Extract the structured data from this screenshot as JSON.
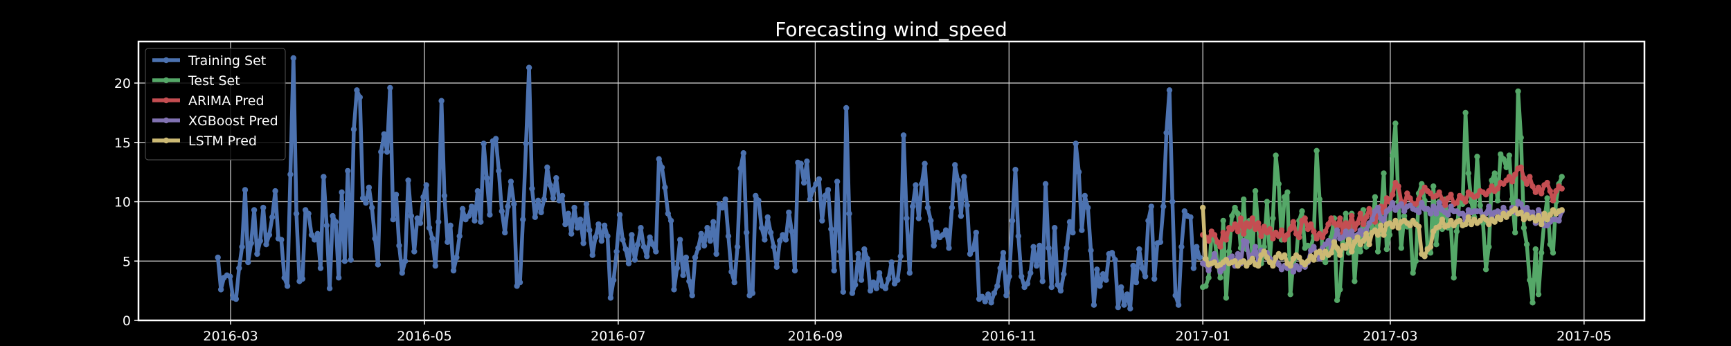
{
  "chart_data": {
    "type": "line",
    "title": "Forecasting wind_speed",
    "xlabel": "",
    "ylabel": "",
    "x_range": [
      "2016-02-01",
      "2017-05-20"
    ],
    "ylim": [
      0,
      23.5
    ],
    "x_ticks": [
      "2016-03",
      "2016-05",
      "2016-07",
      "2016-09",
      "2016-11",
      "2017-01",
      "2017-03",
      "2017-05"
    ],
    "x_tick_dates": [
      "2016-03-01",
      "2016-05-01",
      "2016-07-01",
      "2016-09-01",
      "2016-11-01",
      "2017-01-01",
      "2017-03-01",
      "2017-05-01"
    ],
    "y_ticks": [
      0,
      5,
      10,
      15,
      20
    ],
    "grid": true,
    "legend_position": "top-left",
    "colors": {
      "background": "#000000",
      "frame": "#ffffff",
      "grid": "#d9d9d9",
      "text": "#ffffff"
    },
    "series": [
      {
        "name": "Training Set",
        "color": "#4c72b0",
        "start_date": "2016-02-26",
        "end_date": "2016-12-31",
        "values": [
          5.3,
          2.6,
          3.6,
          3.8,
          3.7,
          1.9,
          1.8,
          4.4,
          6.2,
          11.0,
          4.9,
          6.5,
          9.3,
          5.6,
          6.7,
          9.5,
          6.4,
          7.2,
          8.7,
          10.9,
          6.9,
          6.8,
          3.6,
          2.9,
          12.3,
          22.1,
          9.0,
          3.3,
          3.5,
          9.3,
          9.0,
          7.2,
          6.8,
          7.3,
          4.4,
          12.1,
          8.0,
          2.7,
          8.8,
          8.3,
          3.6,
          10.8,
          5.0,
          12.6,
          5.1,
          16.1,
          19.4,
          18.8,
          10.3,
          9.9,
          11.2,
          9.5,
          6.9,
          4.7,
          14.2,
          15.7,
          14.2,
          19.6,
          8.5,
          10.6,
          6.3,
          4.0,
          5.0,
          11.8,
          8.8,
          5.8,
          8.6,
          8.2,
          10.4,
          11.4,
          7.8,
          6.9,
          4.6,
          8.3,
          18.5,
          10.5,
          6.6,
          8.0,
          4.2,
          5.3,
          7.1,
          9.4,
          8.5,
          8.8,
          9.6,
          8.4,
          10.9,
          8.3,
          14.9,
          12.0,
          8.9,
          15.1,
          15.3,
          12.6,
          9.2,
          7.4,
          9.6,
          11.7,
          9.8,
          2.9,
          3.2,
          8.5,
          14.9,
          21.3,
          11.1,
          8.7,
          10.1,
          9.1,
          10.2,
          12.9,
          11.4,
          10.3,
          12.0,
          10.1,
          10.5,
          8.1,
          9.0,
          7.3,
          9.5,
          7.8,
          8.5,
          6.5,
          9.8,
          7.6,
          5.5,
          7.0,
          8.1,
          6.7,
          8.0,
          7.1,
          1.9,
          3.4,
          5.8,
          8.9,
          6.8,
          6.0,
          4.8,
          7.2,
          5.1,
          6.4,
          7.8,
          6.2,
          5.4,
          7.0,
          6.4,
          5.8,
          13.6,
          12.9,
          11.2,
          9.0,
          8.4,
          2.6,
          4.4,
          6.8,
          3.8,
          5.3,
          3.3,
          2.1,
          5.3,
          6.1,
          7.3,
          6.3,
          7.8,
          6.7,
          8.3,
          5.6,
          9.8,
          9.5,
          10.2,
          7.1,
          4.1,
          3.2,
          6.2,
          12.8,
          14.1,
          7.4,
          2.1,
          2.3,
          10.5,
          10.1,
          7.8,
          6.8,
          8.7,
          7.4,
          6.2,
          4.5,
          6.7,
          7.2,
          6.8,
          9.1,
          7.5,
          4.2,
          13.3,
          13.2,
          11.6,
          13.4,
          10.2,
          11.0,
          11.5,
          11.9,
          8.4,
          10.5,
          11.0,
          7.7,
          4.2,
          11.7,
          5.8,
          2.4,
          17.9,
          9.0,
          2.3,
          3.0,
          5.6,
          3.4,
          6.0,
          5.2,
          2.5,
          3.2,
          2.7,
          4.0,
          2.9,
          2.7,
          3.5,
          4.9,
          3.1,
          3.4,
          5.4,
          15.6,
          8.6,
          4.0,
          9.6,
          11.4,
          8.6,
          11.5,
          13.2,
          9.5,
          8.4,
          6.3,
          7.4,
          7.0,
          7.2,
          7.6,
          6.1,
          9.5,
          13.1,
          11.8,
          8.8,
          12.1,
          9.7,
          5.6,
          6.0,
          7.4,
          1.8,
          2.0,
          1.6,
          2.2,
          1.5,
          2.3,
          2.9,
          4.4,
          5.7,
          2.1,
          3.7,
          8.4,
          12.7,
          7.1,
          3.7,
          2.8,
          3.1,
          4.0,
          6.2,
          4.6,
          6.3,
          3.3,
          11.5,
          6.1,
          2.8,
          7.8,
          3.0,
          2.5,
          3.9,
          6.1,
          8.3,
          7.4,
          14.9,
          12.5,
          7.6,
          10.5,
          9.5,
          5.9,
          1.3,
          4.3,
          2.9,
          3.9,
          3.4,
          5.6,
          5.7,
          5.1,
          1.1,
          2.8,
          1.3,
          2.2,
          1.0,
          4.6,
          3.2,
          6.0,
          4.4,
          3.7,
          8.4,
          9.6,
          3.5,
          6.5,
          6.6,
          9.6,
          15.8,
          19.4,
          10.0,
          2.1,
          1.3,
          6.2,
          9.2,
          8.8,
          8.7,
          4.4,
          6.2,
          5.3
        ]
      },
      {
        "name": "Test Set",
        "color": "#55a868",
        "start_date": "2017-01-01",
        "end_date": "2017-04-24",
        "values": [
          2.8,
          2.9,
          3.6,
          7.2,
          7.0,
          4.9,
          3.6,
          8.4,
          1.9,
          5.8,
          8.8,
          9.5,
          9.0,
          6.1,
          10.2,
          6.0,
          8.4,
          5.4,
          10.9,
          7.7,
          4.8,
          6.2,
          10.0,
          5.2,
          8.6,
          13.9,
          11.5,
          6.8,
          10.4,
          10.8,
          2.2,
          4.9,
          5.3,
          8.4,
          9.2,
          6.1,
          6.3,
          6.2,
          7.1,
          14.3,
          10.2,
          5.8,
          4.9,
          6.2,
          7.0,
          8.6,
          1.7,
          2.6,
          6.5,
          9.0,
          5.7,
          9.0,
          3.3,
          6.8,
          5.8,
          9.3,
          6.2,
          6.9,
          7.8,
          10.4,
          5.8,
          8.6,
          12.4,
          6.0,
          7.2,
          13.9,
          16.6,
          10.0,
          6.1,
          8.8,
          7.9,
          8.2,
          4.0,
          5.0,
          10.7,
          11.5,
          10.1,
          6.1,
          5.7,
          11.3,
          6.4,
          10.0,
          7.7,
          10.2,
          7.8,
          7.9,
          3.6,
          7.5,
          10.3,
          9.8,
          17.5,
          12.4,
          10.0,
          8.7,
          13.8,
          9.7,
          8.2,
          4.3,
          6.2,
          11.8,
          12.4,
          10.1,
          14.0,
          13.6,
          12.9,
          13.9,
          10.2,
          7.4,
          19.3,
          15.4,
          7.8,
          6.4,
          3.4,
          1.5,
          6.0,
          2.2,
          5.7,
          8.4,
          10.3,
          6.4,
          5.7,
          10.0,
          11.5,
          12.1
        ]
      },
      {
        "name": "ARIMA Pred",
        "color": "#c44e52",
        "start_date": "2017-01-01",
        "end_date": "2017-04-24",
        "values": [
          7.2,
          7.0,
          6.7,
          7.5,
          7.2,
          6.6,
          6.2,
          7.4,
          6.8,
          7.8,
          7.7,
          8.1,
          7.5,
          8.6,
          7.3,
          8.2,
          7.9,
          8.6,
          7.7,
          8.2,
          7.1,
          7.9,
          7.4,
          7.7,
          6.9,
          7.4,
          7.1,
          7.6,
          6.8,
          7.2,
          7.7,
          8.3,
          7.3,
          7.0,
          8.4,
          8.6,
          7.7,
          8.1,
          7.5,
          6.9,
          7.3,
          7.0,
          7.5,
          8.1,
          8.6,
          8.2,
          7.9,
          8.6,
          7.4,
          8.2,
          7.9,
          8.8,
          7.7,
          8.2,
          9.0,
          8.1,
          8.7,
          9.4,
          8.8,
          8.3,
          9.0,
          9.6,
          9.1,
          10.3,
          10.0,
          10.6,
          11.6,
          11.3,
          10.0,
          9.7,
          10.7,
          10.3,
          9.8,
          9.8,
          10.2,
          10.8,
          11.2,
          10.9,
          10.7,
          10.4,
          10.5,
          10.8,
          10.2,
          9.7,
          10.3,
          10.6,
          9.8,
          9.9,
          10.5,
          10.3,
          10.0,
          10.8,
          10.6,
          10.4,
          10.5,
          10.9,
          10.8,
          10.6,
          10.9,
          11.3,
          10.9,
          11.1,
          11.6,
          11.5,
          11.8,
          12.1,
          11.7,
          12.3,
          12.8,
          12.9,
          12.0,
          11.5,
          12.1,
          11.3,
          10.8,
          11.2,
          10.7,
          11.4,
          11.6,
          10.9,
          10.1,
          10.9,
          11.3,
          11.1
        ]
      },
      {
        "name": "XGBoost Pred",
        "color": "#8172b2",
        "start_date": "2017-01-01",
        "end_date": "2017-04-24",
        "values": [
          4.8,
          4.7,
          4.2,
          4.9,
          5.6,
          4.7,
          4.1,
          4.4,
          5.1,
          5.2,
          5.4,
          4.6,
          5.6,
          4.8,
          6.7,
          6.6,
          4.9,
          5.5,
          6.2,
          5.0,
          5.9,
          5.6,
          5.7,
          5.2,
          4.8,
          5.0,
          4.7,
          4.3,
          4.6,
          4.4,
          4.7,
          4.1,
          4.6,
          4.3,
          4.7,
          4.5,
          4.9,
          5.9,
          6.2,
          5.6,
          5.2,
          6.1,
          6.4,
          6.7,
          6.1,
          6.7,
          7.6,
          6.9,
          7.0,
          7.5,
          7.1,
          7.5,
          7.0,
          7.2,
          7.6,
          7.2,
          7.6,
          8.2,
          8.5,
          9.2,
          9.5,
          8.6,
          8.4,
          9.2,
          9.4,
          9.9,
          9.3,
          9.6,
          9.8,
          9.2,
          9.6,
          9.7,
          9.4,
          9.3,
          9.1,
          9.9,
          9.4,
          9.4,
          9.0,
          9.6,
          9.0,
          9.9,
          9.3,
          9.1,
          8.9,
          9.6,
          9.2,
          9.2,
          9.0,
          9.0,
          8.4,
          9.3,
          9.1,
          9.2,
          9.2,
          9.2,
          8.9,
          9.0,
          9.6,
          8.7,
          9.1,
          9.2,
          8.9,
          9.5,
          9.1,
          9.0,
          9.5,
          9.1,
          10.0,
          9.8,
          9.0,
          9.5,
          9.1,
          9.1,
          8.2,
          9.3,
          8.9,
          8.0,
          8.0,
          8.3,
          8.5,
          8.5,
          8.4,
          9.2
        ]
      },
      {
        "name": "LSTM Pred",
        "color": "#ccb974",
        "start_date": "2017-01-01",
        "end_date": "2017-04-24",
        "values": [
          9.5,
          5.2,
          4.7,
          4.8,
          4.9,
          4.6,
          4.7,
          4.9,
          5.1,
          4.8,
          4.9,
          5.0,
          4.6,
          4.9,
          5.0,
          4.6,
          4.9,
          5.2,
          4.7,
          4.6,
          5.5,
          5.8,
          5.3,
          4.9,
          4.6,
          5.3,
          5.6,
          5.3,
          5.5,
          4.8,
          4.6,
          5.2,
          5.5,
          5.3,
          4.9,
          4.7,
          5.0,
          5.4,
          5.1,
          5.7,
          5.8,
          5.3,
          5.8,
          5.5,
          5.7,
          6.6,
          6.1,
          5.5,
          6.3,
          6.1,
          6.8,
          5.8,
          6.6,
          7.0,
          6.4,
          6.7,
          7.3,
          6.4,
          7.4,
          7.6,
          7.2,
          8.0,
          7.2,
          8.1,
          8.2,
          7.9,
          8.4,
          7.8,
          8.3,
          8.4,
          8.2,
          8.0,
          8.4,
          8.1,
          7.9,
          5.6,
          5.4,
          6.0,
          6.2,
          7.5,
          7.8,
          7.9,
          8.5,
          7.9,
          8.0,
          8.4,
          8.0,
          8.3,
          8.4,
          8.0,
          8.1,
          8.7,
          8.1,
          8.5,
          8.2,
          8.4,
          8.7,
          8.5,
          8.1,
          8.5,
          8.3,
          8.7,
          8.5,
          9.0,
          8.7,
          9.0,
          9.2,
          9.4,
          9.0,
          9.1,
          8.5,
          8.9,
          8.6,
          8.7,
          8.4,
          8.8,
          8.1,
          9.0,
          8.5,
          8.9,
          9.3,
          9.0,
          9.2,
          9.3
        ]
      }
    ]
  }
}
